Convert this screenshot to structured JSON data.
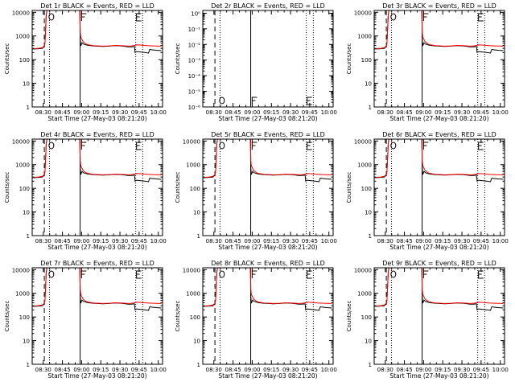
{
  "chart_data": {
    "type": "line",
    "x_axis": {
      "label": "Start Time (27-May-03 08:21:20)",
      "tick_labels": [
        "08:30",
        "08:45",
        "09:00",
        "09:15",
        "09:30",
        "09:45",
        "10:00"
      ],
      "tick_minutes": [
        8.67,
        23.67,
        38.67,
        53.67,
        68.67,
        83.67,
        98.67
      ],
      "range_minutes": [
        0,
        102
      ]
    },
    "y_axis": {
      "label": "Counts/sec",
      "scale": "log"
    },
    "y_axis_primary": {
      "range": [
        1,
        12000
      ],
      "tick_labels": [
        "1",
        "10",
        "100",
        "1000",
        "10000"
      ],
      "tick_values": [
        1,
        10,
        100,
        1000,
        10000
      ]
    },
    "y_axis_det2": {
      "range": [
        1e-06,
        1.5
      ],
      "tick_labels": [
        "10⁻⁶",
        "10⁻⁵",
        "10⁻⁴",
        "10⁻³",
        "10⁻²",
        "10⁻¹",
        "10⁰"
      ],
      "tick_values": [
        1e-06,
        1e-05,
        0.0001,
        0.001,
        0.01,
        0.1,
        1
      ]
    },
    "markers": {
      "dashed_minutes": [
        9.5
      ],
      "dotted_minutes": [
        13.5,
        81.0,
        86.5
      ],
      "solid_minutes": [
        37.5
      ],
      "letter_O_minutes": 12.5,
      "letter_F_minutes": 38.0,
      "letter_E_minutes": 81.0
    },
    "series": [
      {
        "name": "Events",
        "color": "#000000",
        "x": [
          0,
          5,
          8,
          9.5,
          10,
          11,
          11.5,
          12,
          13,
          15,
          37.3,
          37.6,
          38,
          39,
          40,
          42,
          44,
          48,
          55,
          60,
          65,
          70,
          75,
          78,
          80,
          80.5,
          81.5,
          85,
          88,
          91,
          92,
          94,
          97,
          101
        ],
        "y": [
          280,
          290,
          300,
          360,
          520,
          8000,
          12000,
          12000,
          12000,
          12000,
          12000,
          700,
          380,
          520,
          460,
          420,
          400,
          380,
          360,
          370,
          390,
          380,
          350,
          350,
          360,
          200,
          220,
          210,
          200,
          190,
          270,
          260,
          250,
          240
        ]
      },
      {
        "name": "LLD",
        "color": "#ff0000",
        "x": [
          0,
          5,
          8,
          9.5,
          10,
          11,
          11.5,
          12,
          13,
          15,
          37.3,
          37.6,
          38,
          39,
          40,
          42,
          44,
          48,
          55,
          60,
          65,
          70,
          75,
          78,
          80,
          82,
          85,
          90,
          95,
          101
        ],
        "y": [
          290,
          300,
          320,
          380,
          540,
          8500,
          12000,
          12000,
          12000,
          12000,
          12000,
          1400,
          900,
          700,
          560,
          460,
          420,
          390,
          370,
          380,
          400,
          390,
          370,
          380,
          400,
          420,
          410,
          390,
          380,
          370
        ]
      }
    ],
    "panels": [
      {
        "title": "Det 1r BLACK = Events, RED = LLD",
        "scale": "primary",
        "traces": true
      },
      {
        "title": "Det 2r BLACK = Events, RED = LLD",
        "scale": "det2",
        "traces": false
      },
      {
        "title": "Det 3r BLACK = Events, RED = LLD",
        "scale": "primary",
        "traces": true
      },
      {
        "title": "Det 4r BLACK = Events, RED = LLD",
        "scale": "primary",
        "traces": true
      },
      {
        "title": "Det 5r BLACK = Events, RED = LLD",
        "scale": "primary",
        "traces": true
      },
      {
        "title": "Det 6r BLACK = Events, RED = LLD",
        "scale": "primary",
        "traces": true
      },
      {
        "title": "Det 7r BLACK = Events, RED = LLD",
        "scale": "primary",
        "traces": true
      },
      {
        "title": "Det 8r BLACK = Events, RED = LLD",
        "scale": "primary",
        "traces": true
      },
      {
        "title": "Det 9r BLACK = Events, RED = LLD",
        "scale": "primary",
        "traces": true
      }
    ]
  }
}
